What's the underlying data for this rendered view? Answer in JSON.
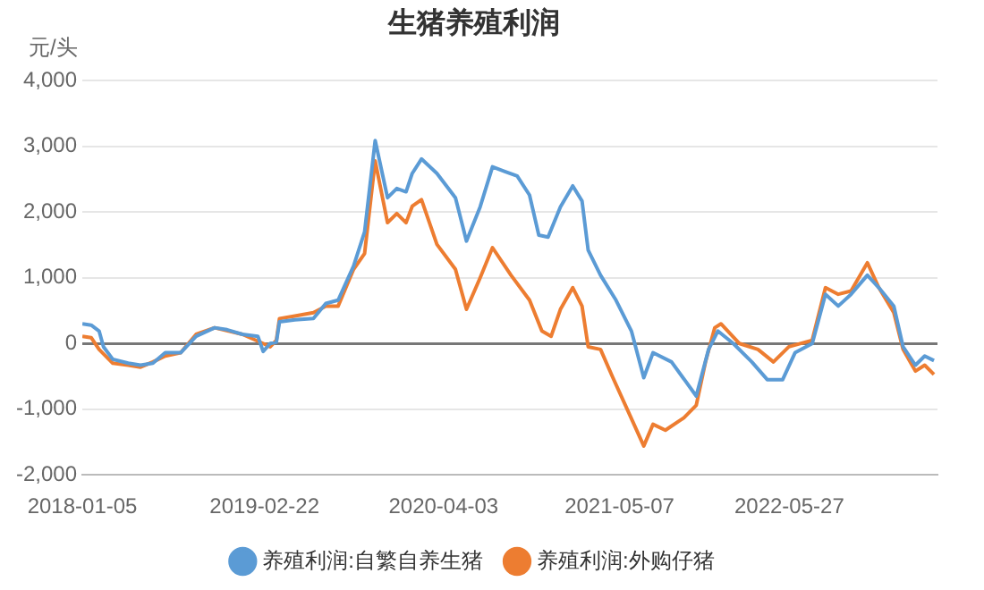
{
  "chart_data": {
    "type": "line",
    "title": "生猪养殖利润",
    "ylabel": "元/头",
    "ylim": [
      -2000,
      4000
    ],
    "yticks": [
      {
        "value": -2000,
        "label": "-2,000"
      },
      {
        "value": -1000,
        "label": "-1,000"
      },
      0,
      {
        "value": 1000,
        "label": "1,000"
      },
      {
        "value": 2000,
        "label": "2,000"
      },
      {
        "value": 3000,
        "label": "3,000"
      },
      {
        "value": 4000,
        "label": "4,000"
      }
    ],
    "xlim": [
      "2018-01-05",
      "2023-04-28"
    ],
    "xticks": [
      "2018-01-05",
      "2019-02-22",
      "2020-04-03",
      "2021-05-07",
      "2022-05-27"
    ],
    "grid": "y",
    "legend": "bottom",
    "marker": "none",
    "line_style": "solid",
    "series": [
      {
        "name": "养殖利润:自繁自养生猪",
        "color": "#5b9bd5",
        "x": [
          "2018-01-05",
          "2018-01-25",
          "2018-02-12",
          "2018-02-22",
          "2018-03-15",
          "2018-04-19",
          "2018-05-17",
          "2018-06-14",
          "2018-07-12",
          "2018-08-16",
          "2018-09-20",
          "2018-11-01",
          "2018-11-29",
          "2019-01-03",
          "2019-02-07",
          "2019-02-19",
          "2019-03-07",
          "2019-03-21",
          "2019-03-28",
          "2019-05-02",
          "2019-06-13",
          "2019-07-11",
          "2019-08-08",
          "2019-09-12",
          "2019-10-07",
          "2019-10-31",
          "2019-11-28",
          "2019-12-19",
          "2020-01-09",
          "2020-01-23",
          "2020-02-13",
          "2020-03-19",
          "2020-04-30",
          "2020-05-25",
          "2020-06-25",
          "2020-07-23",
          "2020-08-20",
          "2020-09-17",
          "2020-10-15",
          "2020-11-05",
          "2020-11-26",
          "2020-12-24",
          "2021-01-21",
          "2021-02-11",
          "2021-02-25",
          "2021-03-25",
          "2021-04-29",
          "2021-06-03",
          "2021-07-01",
          "2021-07-22",
          "2021-09-02",
          "2021-10-28",
          "2021-11-25",
          "2021-12-16",
          "2022-01-20",
          "2022-03-03",
          "2022-04-07",
          "2022-05-12",
          "2022-06-09",
          "2022-07-18",
          "2022-08-17",
          "2022-09-15",
          "2022-10-14",
          "2022-11-20",
          "2022-12-16",
          "2023-01-19",
          "2023-02-09",
          "2023-03-09",
          "2023-03-30",
          "2023-04-20"
        ],
        "values": [
          300,
          280,
          190,
          -50,
          -240,
          -300,
          -330,
          -300,
          -140,
          -140,
          110,
          240,
          210,
          140,
          110,
          -120,
          0,
          20,
          330,
          360,
          380,
          610,
          660,
          1180,
          1700,
          3090,
          2220,
          2360,
          2310,
          2590,
          2810,
          2590,
          2220,
          1560,
          2080,
          2690,
          2620,
          2550,
          2260,
          1650,
          1620,
          2080,
          2400,
          2170,
          1420,
          1040,
          660,
          190,
          -520,
          -140,
          -280,
          -800,
          -90,
          190,
          0,
          -280,
          -550,
          -550,
          -140,
          0,
          750,
          570,
          750,
          1040,
          850,
          570,
          -50,
          -330,
          -190,
          -260
        ]
      },
      {
        "name": "养殖利润:外购仔猪",
        "color": "#ed7d31",
        "x": [
          "2018-01-05",
          "2018-01-25",
          "2018-02-12",
          "2018-03-15",
          "2018-04-19",
          "2018-05-17",
          "2018-06-14",
          "2018-07-12",
          "2018-08-16",
          "2018-09-20",
          "2018-11-01",
          "2019-01-03",
          "2019-02-19",
          "2019-03-07",
          "2019-03-21",
          "2019-03-28",
          "2019-05-02",
          "2019-06-13",
          "2019-07-11",
          "2019-08-08",
          "2019-09-12",
          "2019-10-07",
          "2019-10-31",
          "2019-11-28",
          "2019-12-19",
          "2020-01-09",
          "2020-01-23",
          "2020-02-13",
          "2020-03-19",
          "2020-04-30",
          "2020-05-25",
          "2020-06-25",
          "2020-07-23",
          "2020-09-03",
          "2020-10-15",
          "2020-11-12",
          "2020-12-03",
          "2020-12-24",
          "2021-01-21",
          "2021-02-11",
          "2021-02-25",
          "2021-03-25",
          "2021-04-22",
          "2021-05-27",
          "2021-07-01",
          "2021-07-22",
          "2021-08-19",
          "2021-09-30",
          "2021-10-28",
          "2021-11-18",
          "2021-12-09",
          "2021-12-23",
          "2022-02-03",
          "2022-03-17",
          "2022-04-21",
          "2022-05-26",
          "2022-07-18",
          "2022-08-17",
          "2022-09-15",
          "2022-10-14",
          "2022-11-20",
          "2022-12-16",
          "2023-01-19",
          "2023-02-09",
          "2023-03-09",
          "2023-03-30",
          "2023-04-20"
        ],
        "values": [
          110,
          90,
          -90,
          -300,
          -330,
          -360,
          -280,
          -190,
          -140,
          140,
          240,
          140,
          0,
          -50,
          50,
          380,
          420,
          470,
          570,
          570,
          1130,
          1370,
          2780,
          1840,
          1980,
          1840,
          2090,
          2190,
          1510,
          1130,
          520,
          1000,
          1460,
          1040,
          660,
          190,
          110,
          520,
          850,
          570,
          -50,
          -90,
          -520,
          -1040,
          -1560,
          -1230,
          -1320,
          -1130,
          -940,
          -280,
          240,
          300,
          0,
          -90,
          -280,
          -50,
          50,
          850,
          750,
          800,
          1230,
          850,
          470,
          -90,
          -420,
          -330,
          -470
        ]
      }
    ]
  }
}
